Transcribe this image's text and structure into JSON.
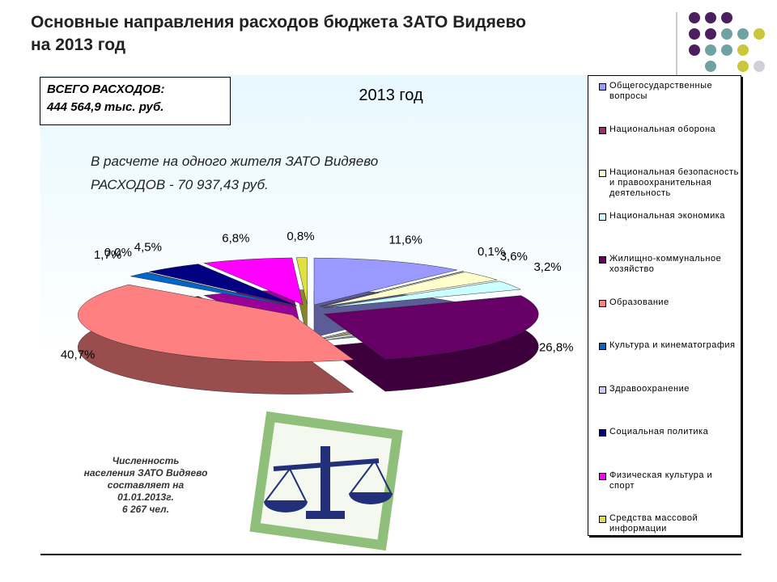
{
  "title": [
    "Основные направления расходов бюджета ЗАТО Видяево",
    "на 2013 год"
  ],
  "total": [
    "ВСЕГО РАСХОДОВ:",
    "444 564,9 тыс. руб."
  ],
  "per_capita": [
    "В расчете на одного жителя ЗАТО Видяево",
    "РАСХОДОВ - 70 937,43 руб."
  ],
  "population_note": [
    "Численность",
    "населения ЗАТО Видяево",
    "составляет на",
    "01.01.2013г.",
    "6 267 чел."
  ],
  "chart_data": {
    "type": "pie",
    "title": "2013 год",
    "categories": [
      "Общегосударственные вопросы",
      "Национальная оборона",
      "Национальная безопасность и правоохранительная деятельность",
      "Национальная экономика",
      "Жилищно-коммунальное хозяйство",
      "Образование",
      "Культура и кинематография",
      "Здравоохранение",
      "Социальная политика",
      "Физическая культура и спорт",
      "Средства массовой информации"
    ],
    "values": [
      11.6,
      0.1,
      3.6,
      3.2,
      26.8,
      40.7,
      1.7,
      0.0,
      4.5,
      6.8,
      0.8
    ],
    "value_labels": [
      "11,6%",
      "0,1%",
      "3,6%",
      "3,2%",
      "26,8%",
      "40,7%",
      "1,7%",
      "0,0%",
      "4,5%",
      "6,8%",
      "0,8%"
    ],
    "colors": [
      "#9999ff",
      "#993366",
      "#ffffcc",
      "#ccffff",
      "#660066",
      "#ff8080",
      "#0066cc",
      "#ccccff",
      "#000080",
      "#ff00ff",
      "#e0e040"
    ],
    "legend": "right"
  }
}
